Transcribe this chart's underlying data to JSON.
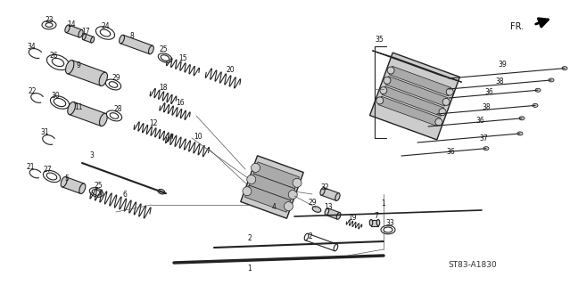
{
  "bg_color": "#ffffff",
  "diagram_code": "ST83-A1830",
  "fr_label": "FR.",
  "fig_width": 6.39,
  "fig_height": 3.2,
  "dpi": 100,
  "line_color": "#222222",
  "gray_fill": "#cccccc",
  "dark_fill": "#555555"
}
